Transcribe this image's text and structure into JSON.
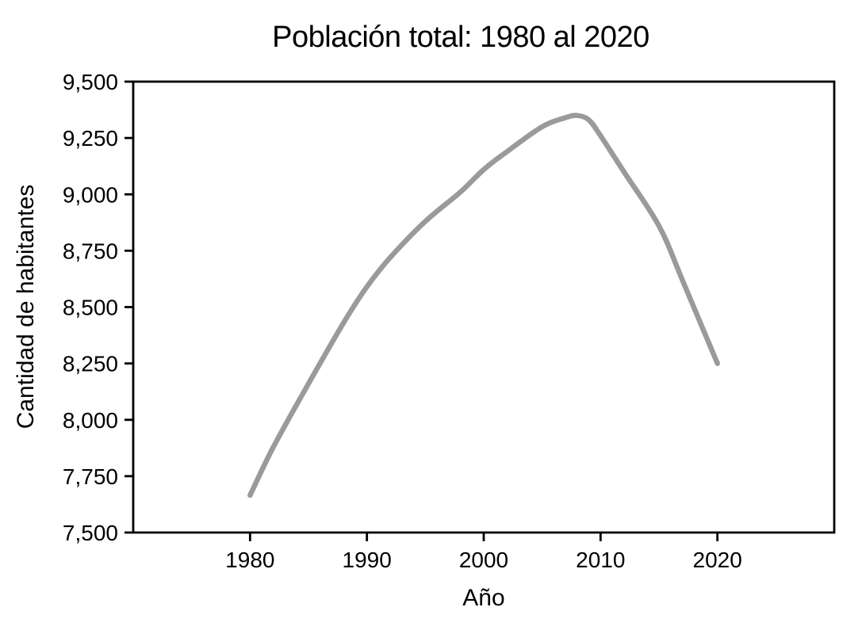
{
  "chart_data": {
    "type": "line",
    "title": "Población total: 1980 al 2020",
    "xlabel": "Año",
    "ylabel": "Cantidad de habitantes",
    "xlim": [
      1970,
      2030
    ],
    "ylim": [
      7500,
      9500
    ],
    "grid": false,
    "legend": "none",
    "axis_color": "#000000",
    "background_color": "#ffffff",
    "xticks": [
      {
        "value": 1980,
        "label": "1980"
      },
      {
        "value": 1990,
        "label": "1990"
      },
      {
        "value": 2000,
        "label": "2000"
      },
      {
        "value": 2010,
        "label": "2010"
      },
      {
        "value": 2020,
        "label": "2020"
      }
    ],
    "yticks": [
      {
        "value": 7500,
        "label": "7,500"
      },
      {
        "value": 7750,
        "label": "7,750"
      },
      {
        "value": 8000,
        "label": "8,000"
      },
      {
        "value": 8250,
        "label": "8,250"
      },
      {
        "value": 8500,
        "label": "8,500"
      },
      {
        "value": 8750,
        "label": "8,750"
      },
      {
        "value": 9000,
        "label": "9,000"
      },
      {
        "value": 9250,
        "label": "9,250"
      },
      {
        "value": 9500,
        "label": "9,500"
      }
    ],
    "series": [
      {
        "color": "#9a9a9a",
        "line_width": 6.5,
        "x": [
          1980,
          1982,
          1985,
          1988,
          1990,
          1992,
          1995,
          1998,
          2000,
          2002,
          2005,
          2007,
          2008,
          2009,
          2010,
          2012,
          2015,
          2017,
          2020
        ],
        "y": [
          7665,
          7880,
          8160,
          8430,
          8590,
          8720,
          8880,
          9010,
          9110,
          9190,
          9300,
          9340,
          9350,
          9330,
          9260,
          9100,
          8860,
          8620,
          8250
        ]
      }
    ]
  }
}
